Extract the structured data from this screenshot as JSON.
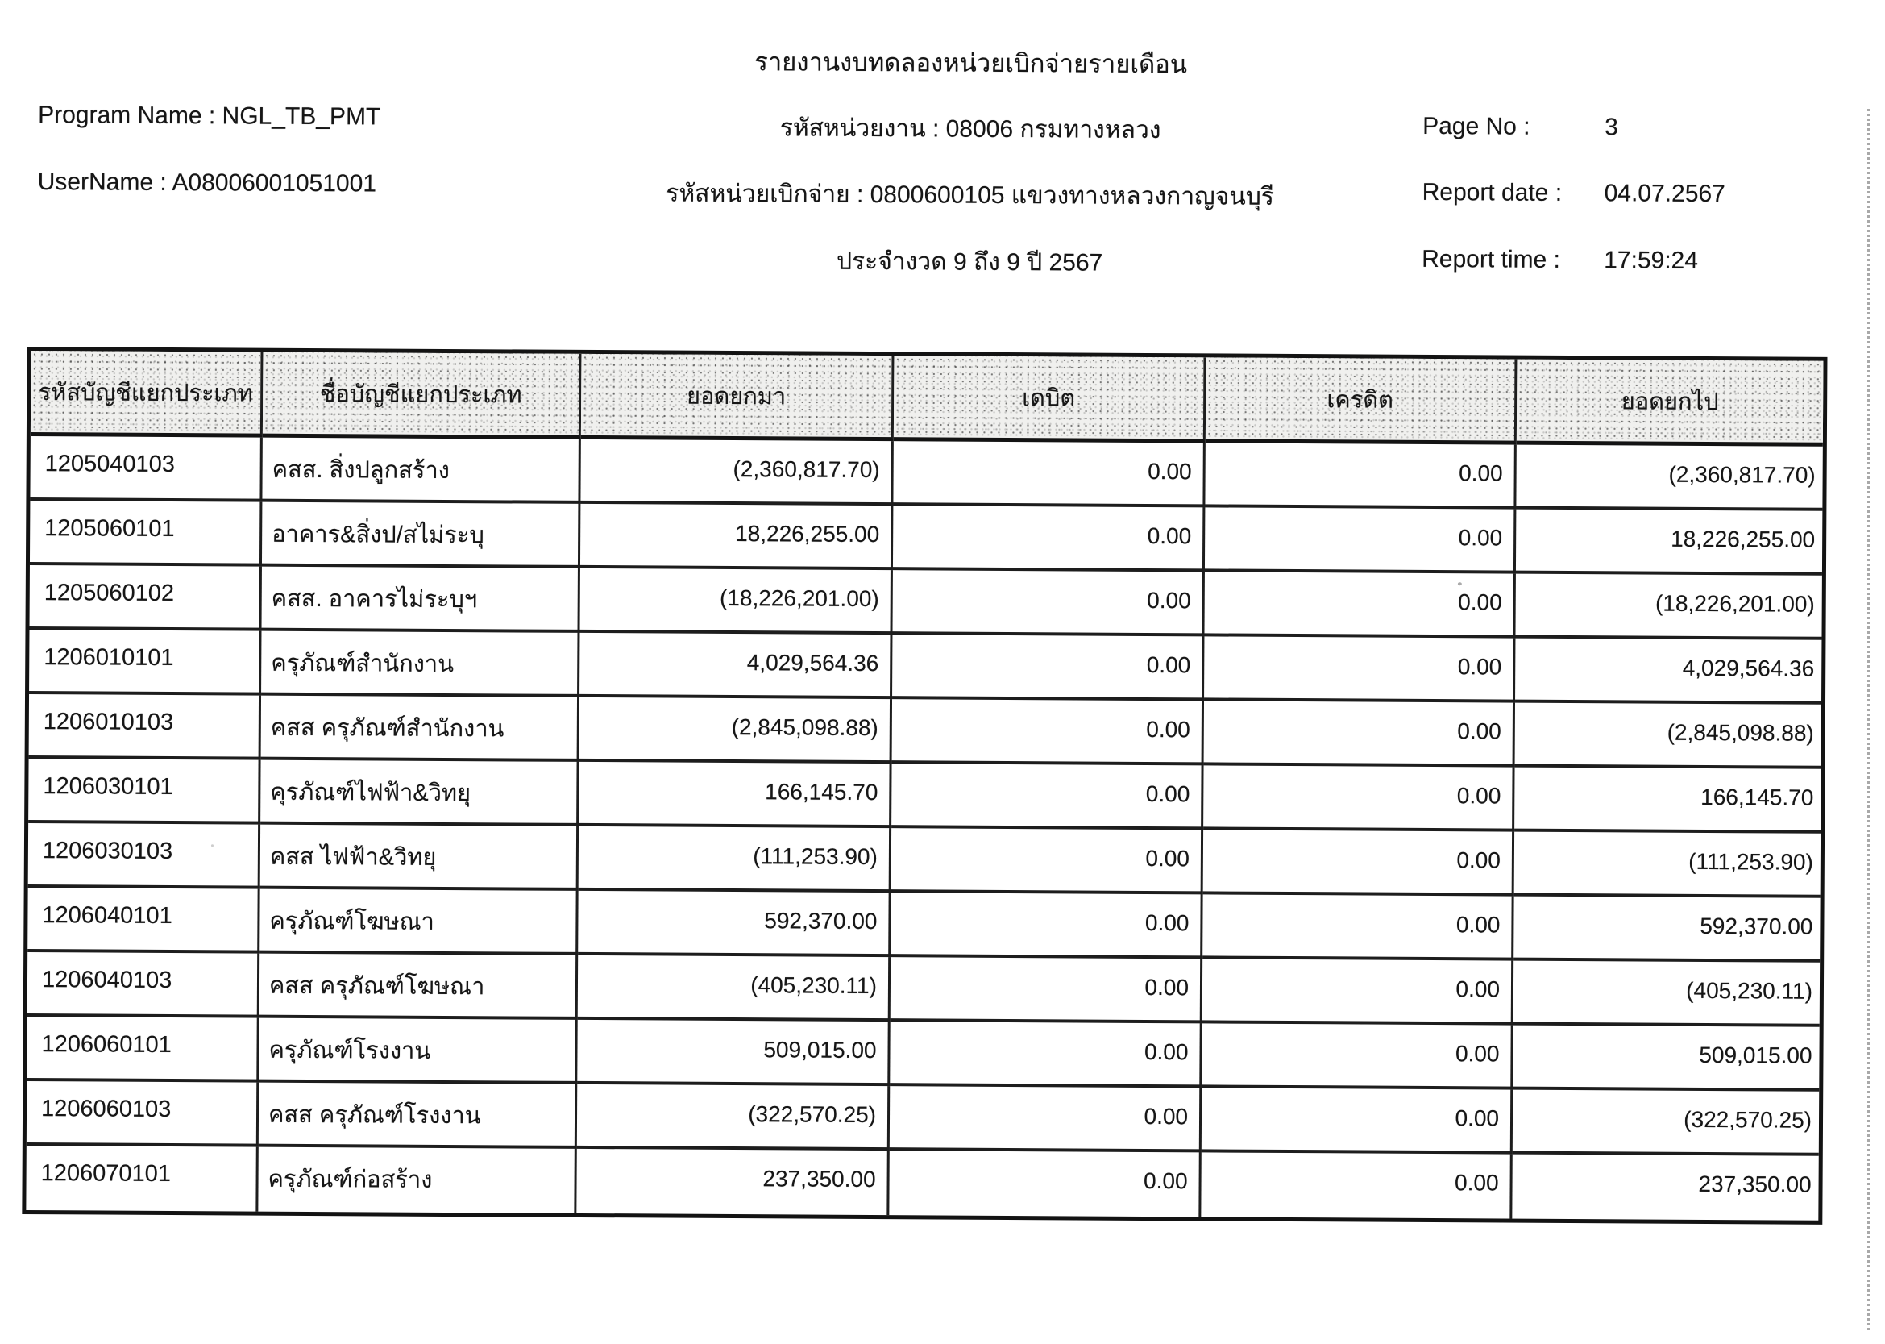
{
  "report_header": {
    "title": "รายงานงบทดลองหน่วยเบิกจ่ายรายเดือน",
    "program_name_label": "Program Name :",
    "program_name_value": "NGL_TB_PMT",
    "username_label": "UserName :",
    "username_value": "A08006001051001",
    "agency_line": "รหัสหน่วยงาน : 08006 กรมทางหลวง",
    "disbursement_line": "รหัสหน่วยเบิกจ่าย : 0800600105 แขวงทางหลวงกาญจนบุรี",
    "period_line": "ประจำงวด 9 ถึง 9 ปี 2567",
    "page_no_label": "Page No :",
    "page_no_value": "3",
    "report_date_label": "Report date :",
    "report_date_value": "04.07.2567",
    "report_time_label": "Report time :",
    "report_time_value": "17:59:24"
  },
  "table": {
    "columns": [
      "รหัสบัญชีแยกประเภท",
      "ชื่อบัญชีแยกประเภท",
      "ยอดยกมา",
      "เดบิต",
      "เครดิต",
      "ยอดยกไป"
    ],
    "rows": [
      {
        "code": "1205040103",
        "name": "คสส. สิ่งปลูกสร้าง",
        "begin": "(2,360,817.70)",
        "debit": "0.00",
        "credit": "0.00",
        "end": "(2,360,817.70)"
      },
      {
        "code": "1205060101",
        "name": "อาคาร&สิ่งป/สไม่ระบุ",
        "begin": "18,226,255.00",
        "debit": "0.00",
        "credit": "0.00",
        "end": "18,226,255.00"
      },
      {
        "code": "1205060102",
        "name": "คสส. อาคารไม่ระบุฯ",
        "begin": "(18,226,201.00)",
        "debit": "0.00",
        "credit": "0.00",
        "end": "(18,226,201.00)"
      },
      {
        "code": "1206010101",
        "name": "ครุภัณฑ์สำนักงาน",
        "begin": "4,029,564.36",
        "debit": "0.00",
        "credit": "0.00",
        "end": "4,029,564.36"
      },
      {
        "code": "1206010103",
        "name": "คสส ครุภัณฑ์สำนักงาน",
        "begin": "(2,845,098.88)",
        "debit": "0.00",
        "credit": "0.00",
        "end": "(2,845,098.88)"
      },
      {
        "code": "1206030101",
        "name": "คุรภัณฑ์ไฟฟ้า&วิทยุ",
        "begin": "166,145.70",
        "debit": "0.00",
        "credit": "0.00",
        "end": "166,145.70"
      },
      {
        "code": "1206030103",
        "name": "คสส ไฟฟ้า&วิทยุ",
        "begin": "(111,253.90)",
        "debit": "0.00",
        "credit": "0.00",
        "end": "(111,253.90)"
      },
      {
        "code": "1206040101",
        "name": "ครุภัณฑ์โฆษณา",
        "begin": "592,370.00",
        "debit": "0.00",
        "credit": "0.00",
        "end": "592,370.00"
      },
      {
        "code": "1206040103",
        "name": "คสส ครุภัณฑ์โฆษณา",
        "begin": "(405,230.11)",
        "debit": "0.00",
        "credit": "0.00",
        "end": "(405,230.11)"
      },
      {
        "code": "1206060101",
        "name": "ครุภัณฑ์โรงงาน",
        "begin": "509,015.00",
        "debit": "0.00",
        "credit": "0.00",
        "end": "509,015.00"
      },
      {
        "code": "1206060103",
        "name": "คสส ครุภัณฑ์โรงงาน",
        "begin": "(322,570.25)",
        "debit": "0.00",
        "credit": "0.00",
        "end": "(322,570.25)"
      },
      {
        "code": "1206070101",
        "name": "ครุภัณฑ์ก่อสร้าง",
        "begin": "237,350.00",
        "debit": "0.00",
        "credit": "0.00",
        "end": "237,350.00"
      }
    ]
  },
  "colors": {
    "ink": "#161616",
    "table_border": "#131313",
    "header_fill": "#f0f0ee",
    "edge_dots": "#8d8d8d"
  }
}
